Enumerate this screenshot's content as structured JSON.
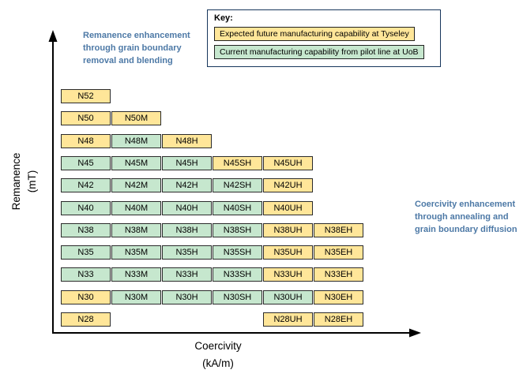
{
  "key": {
    "title": "Key:",
    "items": [
      {
        "label": "Expected future manufacturing capability at Tyseley",
        "status": "future"
      },
      {
        "label": "Current manufacturing capability from pilot line at UoB",
        "status": "current"
      }
    ]
  },
  "annotations": {
    "left": "Remanence enhancement through grain boundary removal and blending",
    "right": "Coercivity enhancement through annealing and grain boundary diffusion"
  },
  "axes": {
    "y_label_line1": "Remanence",
    "y_label_line2": "(mT)",
    "x_label_line1": "Coercivity",
    "x_label_line2": "(kA/m)"
  },
  "colors": {
    "future": "#FFE699",
    "current": "#C6E7CE",
    "annotation_blue": "#4d79a6",
    "axis": "#000000",
    "key_border": "#16365C"
  },
  "chart_data": {
    "type": "table",
    "title": "NdFeB magnet grade manufacturing capability map",
    "xlabel": "Coercivity (kA/m)",
    "ylabel": "Remanence (mT)",
    "legend": [
      "Expected future manufacturing capability at Tyseley",
      "Current manufacturing capability from pilot line at UoB"
    ],
    "legend_position": "top",
    "grid": [
      {
        "row": "N52",
        "cells": [
          {
            "label": "N52",
            "col": 0,
            "status": "future"
          }
        ]
      },
      {
        "row": "N50",
        "cells": [
          {
            "label": "N50",
            "col": 0,
            "status": "future"
          },
          {
            "label": "N50M",
            "col": 1,
            "status": "future"
          }
        ]
      },
      {
        "row": "N48",
        "cells": [
          {
            "label": "N48",
            "col": 0,
            "status": "future"
          },
          {
            "label": "N48M",
            "col": 1,
            "status": "current"
          },
          {
            "label": "N48H",
            "col": 2,
            "status": "future"
          }
        ]
      },
      {
        "row": "N45",
        "cells": [
          {
            "label": "N45",
            "col": 0,
            "status": "current"
          },
          {
            "label": "N45M",
            "col": 1,
            "status": "current"
          },
          {
            "label": "N45H",
            "col": 2,
            "status": "current"
          },
          {
            "label": "N45SH",
            "col": 3,
            "status": "future"
          },
          {
            "label": "N45UH",
            "col": 4,
            "status": "future"
          }
        ]
      },
      {
        "row": "N42",
        "cells": [
          {
            "label": "N42",
            "col": 0,
            "status": "current"
          },
          {
            "label": "N42M",
            "col": 1,
            "status": "current"
          },
          {
            "label": "N42H",
            "col": 2,
            "status": "current"
          },
          {
            "label": "N42SH",
            "col": 3,
            "status": "current"
          },
          {
            "label": "N42UH",
            "col": 4,
            "status": "future"
          }
        ]
      },
      {
        "row": "N40",
        "cells": [
          {
            "label": "N40",
            "col": 0,
            "status": "current"
          },
          {
            "label": "N40M",
            "col": 1,
            "status": "current"
          },
          {
            "label": "N40H",
            "col": 2,
            "status": "current"
          },
          {
            "label": "N40SH",
            "col": 3,
            "status": "current"
          },
          {
            "label": "N40UH",
            "col": 4,
            "status": "future"
          }
        ]
      },
      {
        "row": "N38",
        "cells": [
          {
            "label": "N38",
            "col": 0,
            "status": "current"
          },
          {
            "label": "N38M",
            "col": 1,
            "status": "current"
          },
          {
            "label": "N38H",
            "col": 2,
            "status": "current"
          },
          {
            "label": "N38SH",
            "col": 3,
            "status": "current"
          },
          {
            "label": "N38UH",
            "col": 4,
            "status": "future"
          },
          {
            "label": "N38EH",
            "col": 5,
            "status": "future"
          }
        ]
      },
      {
        "row": "N35",
        "cells": [
          {
            "label": "N35",
            "col": 0,
            "status": "current"
          },
          {
            "label": "N35M",
            "col": 1,
            "status": "current"
          },
          {
            "label": "N35H",
            "col": 2,
            "status": "current"
          },
          {
            "label": "N35SH",
            "col": 3,
            "status": "current"
          },
          {
            "label": "N35UH",
            "col": 4,
            "status": "future"
          },
          {
            "label": "N35EH",
            "col": 5,
            "status": "future"
          }
        ]
      },
      {
        "row": "N33",
        "cells": [
          {
            "label": "N33",
            "col": 0,
            "status": "current"
          },
          {
            "label": "N33M",
            "col": 1,
            "status": "current"
          },
          {
            "label": "N33H",
            "col": 2,
            "status": "current"
          },
          {
            "label": "N33SH",
            "col": 3,
            "status": "current"
          },
          {
            "label": "N33UH",
            "col": 4,
            "status": "future"
          },
          {
            "label": "N33EH",
            "col": 5,
            "status": "future"
          }
        ]
      },
      {
        "row": "N30",
        "cells": [
          {
            "label": "N30",
            "col": 0,
            "status": "future"
          },
          {
            "label": "N30M",
            "col": 1,
            "status": "current"
          },
          {
            "label": "N30H",
            "col": 2,
            "status": "current"
          },
          {
            "label": "N30SH",
            "col": 3,
            "status": "current"
          },
          {
            "label": "N30UH",
            "col": 4,
            "status": "current"
          },
          {
            "label": "N30EH",
            "col": 5,
            "status": "future"
          }
        ]
      },
      {
        "row": "N28",
        "cells": [
          {
            "label": "N28",
            "col": 0,
            "status": "future"
          },
          {
            "label": "N28UH",
            "col": 4,
            "status": "future"
          },
          {
            "label": "N28EH",
            "col": 5,
            "status": "future"
          }
        ]
      }
    ]
  }
}
